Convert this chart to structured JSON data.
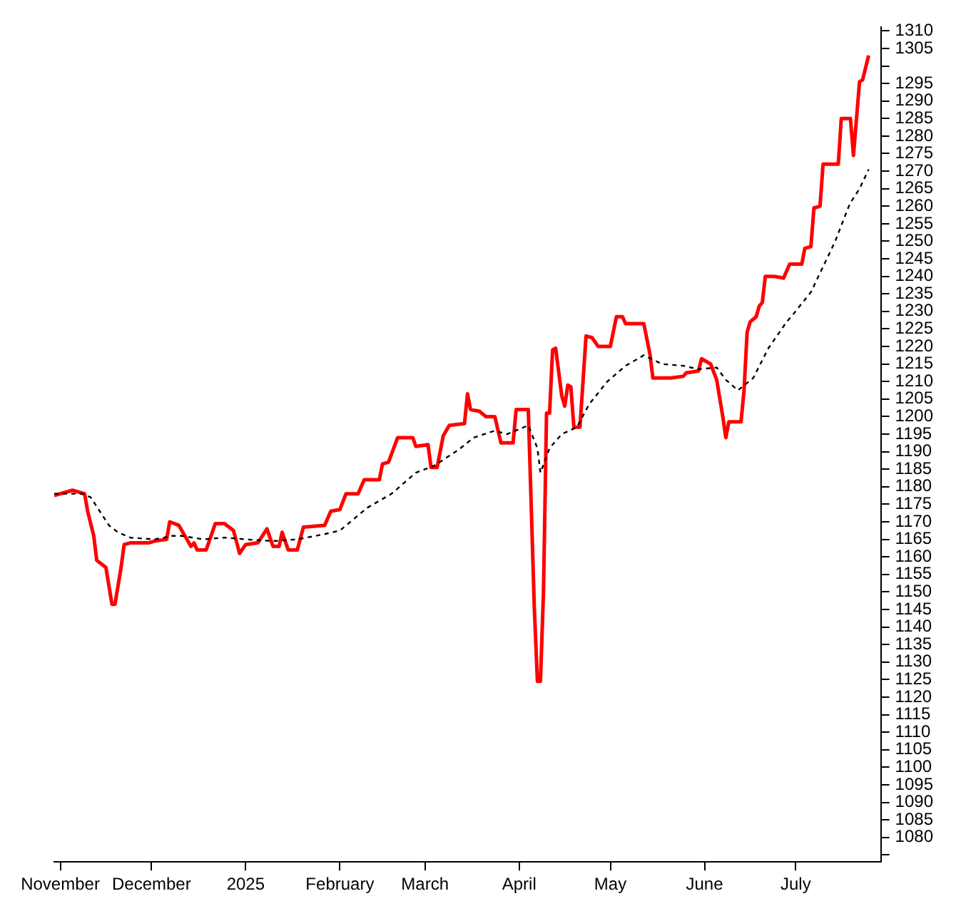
{
  "chart_data": {
    "type": "line",
    "xlim": [
      "2024-10-30",
      "2025-07-29"
    ],
    "ylim": [
      1073,
      1311
    ],
    "xticks": [
      {
        "value": "2024-11-01",
        "label": "November"
      },
      {
        "value": "2024-12-01",
        "label": "December"
      },
      {
        "value": "2025-01-01",
        "label": "2025"
      },
      {
        "value": "2025-02-01",
        "label": "February"
      },
      {
        "value": "2025-03-01",
        "label": "March"
      },
      {
        "value": "2025-04-01",
        "label": "April"
      },
      {
        "value": "2025-05-01",
        "label": "May"
      },
      {
        "value": "2025-06-01",
        "label": "June"
      },
      {
        "value": "2025-07-01",
        "label": "July"
      }
    ],
    "yticks": [
      {
        "value": 1075,
        "label": null
      },
      1080,
      1085,
      1090,
      1095,
      1100,
      1105,
      1110,
      1115,
      1120,
      1125,
      1130,
      1135,
      1140,
      1145,
      1150,
      1155,
      1160,
      1165,
      1170,
      1175,
      1180,
      1185,
      1190,
      1195,
      1200,
      1205,
      1210,
      1215,
      1220,
      1225,
      1230,
      1235,
      1240,
      1245,
      1250,
      1255,
      1260,
      1265,
      1270,
      1275,
      1280,
      1285,
      1290,
      1295,
      {
        "value": 1300,
        "label": null
      },
      1305,
      1310
    ],
    "series": [
      {
        "color": "#ff0000",
        "line_style": "solid",
        "x": [
          "2024-10-30",
          "2024-11-05",
          "2024-11-09",
          "2024-11-10",
          "2024-11-12",
          "2024-11-13",
          "2024-11-16",
          "2024-11-18",
          "2024-11-19",
          "2024-11-21",
          "2024-11-22",
          "2024-11-24",
          "2024-11-30",
          "2024-12-02",
          "2024-12-06",
          "2024-12-07",
          "2024-12-10",
          "2024-12-12",
          "2024-12-14",
          "2024-12-15",
          "2024-12-16",
          "2024-12-19",
          "2024-12-22",
          "2024-12-25",
          "2024-12-28",
          "2024-12-30",
          "2025-01-01",
          "2025-01-05",
          "2025-01-08",
          "2025-01-10",
          "2025-01-12",
          "2025-01-13",
          "2025-01-15",
          "2025-01-18",
          "2025-01-20",
          "2025-01-27",
          "2025-01-29",
          "2025-02-01",
          "2025-02-03",
          "2025-02-07",
          "2025-02-09",
          "2025-02-14",
          "2025-02-15",
          "2025-02-17",
          "2025-02-20",
          "2025-02-25",
          "2025-02-26",
          "2025-03-02",
          "2025-03-03",
          "2025-03-05",
          "2025-03-07",
          "2025-03-09",
          "2025-03-14",
          "2025-03-15",
          "2025-03-16",
          "2025-03-19",
          "2025-03-21",
          "2025-03-24",
          "2025-03-26",
          "2025-03-30",
          "2025-03-31",
          "2025-04-04",
          "2025-04-06",
          "2025-04-07",
          "2025-04-08",
          "2025-04-09",
          "2025-04-10",
          "2025-04-11",
          "2025-04-12",
          "2025-04-13",
          "2025-04-15",
          "2025-04-16",
          "2025-04-17",
          "2025-04-18",
          "2025-04-19",
          "2025-04-21",
          "2025-04-23",
          "2025-04-25",
          "2025-04-27",
          "2025-05-01",
          "2025-05-03",
          "2025-05-05",
          "2025-05-06",
          "2025-05-12",
          "2025-05-14",
          "2025-05-15",
          "2025-05-21",
          "2025-05-25",
          "2025-05-26",
          "2025-05-30",
          "2025-05-31",
          "2025-06-03",
          "2025-06-05",
          "2025-06-07",
          "2025-06-08",
          "2025-06-09",
          "2025-06-13",
          "2025-06-14",
          "2025-06-15",
          "2025-06-16",
          "2025-06-18",
          "2025-06-19",
          "2025-06-20",
          "2025-06-21",
          "2025-06-24",
          "2025-06-27",
          "2025-06-29",
          "2025-07-03",
          "2025-07-04",
          "2025-07-06",
          "2025-07-07",
          "2025-07-09",
          "2025-07-10",
          "2025-07-15",
          "2025-07-16",
          "2025-07-19",
          "2025-07-20",
          "2025-07-22",
          "2025-07-23",
          "2025-07-25"
        ],
        "values": [
          1177.5,
          1179,
          1178,
          1173,
          1166,
          1159,
          1157,
          1146.5,
          1146.5,
          1157,
          1163.5,
          1164,
          1164,
          1164.5,
          1165,
          1170,
          1169,
          1166,
          1163,
          1164,
          1162,
          1162,
          1169.5,
          1169.5,
          1167.5,
          1161,
          1163.5,
          1164,
          1168,
          1163,
          1163,
          1167,
          1162,
          1162,
          1168.5,
          1169,
          1173,
          1173.5,
          1178,
          1178,
          1182,
          1182,
          1186.5,
          1187,
          1194,
          1194,
          1191.5,
          1192,
          1185.5,
          1185.5,
          1194.5,
          1197.5,
          1198,
          1206.5,
          1202,
          1201.5,
          1200,
          1200,
          1192.5,
          1192.5,
          1202,
          1202,
          1145,
          1124.5,
          1124.5,
          1150,
          1201,
          1201,
          1219,
          1219.5,
          1206,
          1203,
          1209,
          1208.5,
          1197,
          1197,
          1223,
          1222.5,
          1220,
          1220,
          1228.5,
          1228.5,
          1226.5,
          1226.5,
          1218,
          1211,
          1211,
          1211.5,
          1212.5,
          1213,
          1216.5,
          1215,
          1210.5,
          1200,
          1194,
          1198.5,
          1198.5,
          1207.5,
          1224,
          1227,
          1228.5,
          1231.5,
          1232.5,
          1240,
          1240,
          1239.5,
          1243.5,
          1243.5,
          1248,
          1248.5,
          1259.5,
          1260,
          1272,
          1272,
          1285,
          1285,
          1274.5,
          1295.5,
          1296,
          1303
        ]
      },
      {
        "color": "#000000",
        "line_style": "dashed",
        "x": [
          "2024-10-30",
          "2024-11-08",
          "2024-11-11",
          "2024-11-14",
          "2024-11-17",
          "2024-11-20",
          "2024-11-24",
          "2024-12-02",
          "2024-12-08",
          "2024-12-11",
          "2024-12-18",
          "2024-12-25",
          "2025-01-01",
          "2025-01-10",
          "2025-01-18",
          "2025-01-27",
          "2025-02-01",
          "2025-02-10",
          "2025-02-18",
          "2025-02-26",
          "2025-03-04",
          "2025-03-12",
          "2025-03-17",
          "2025-03-24",
          "2025-03-28",
          "2025-04-04",
          "2025-04-07",
          "2025-04-08",
          "2025-04-11",
          "2025-04-15",
          "2025-04-20",
          "2025-04-24",
          "2025-04-30",
          "2025-05-06",
          "2025-05-12",
          "2025-05-18",
          "2025-05-25",
          "2025-05-30",
          "2025-06-05",
          "2025-06-08",
          "2025-06-12",
          "2025-06-17",
          "2025-06-22",
          "2025-06-28",
          "2025-06-30",
          "2025-07-06",
          "2025-07-14",
          "2025-07-18",
          "2025-07-19",
          "2025-07-22",
          "2025-07-25"
        ],
        "values": [
          1178,
          1178,
          1177,
          1173,
          1169,
          1167,
          1165.5,
          1165,
          1166,
          1166,
          1165,
          1165.5,
          1165,
          1164.5,
          1165,
          1166.5,
          1167.5,
          1174,
          1178,
          1184,
          1186,
          1190.5,
          1194,
          1196,
          1195,
          1197.5,
          1191,
          1184,
          1191,
          1195,
          1197,
          1203.5,
          1210,
          1214.5,
          1217.5,
          1215,
          1214.5,
          1213.5,
          1214,
          1210.5,
          1207.5,
          1211,
          1219.5,
          1227,
          1229,
          1235.5,
          1250,
          1259,
          1261,
          1265,
          1270.5
        ]
      }
    ]
  }
}
